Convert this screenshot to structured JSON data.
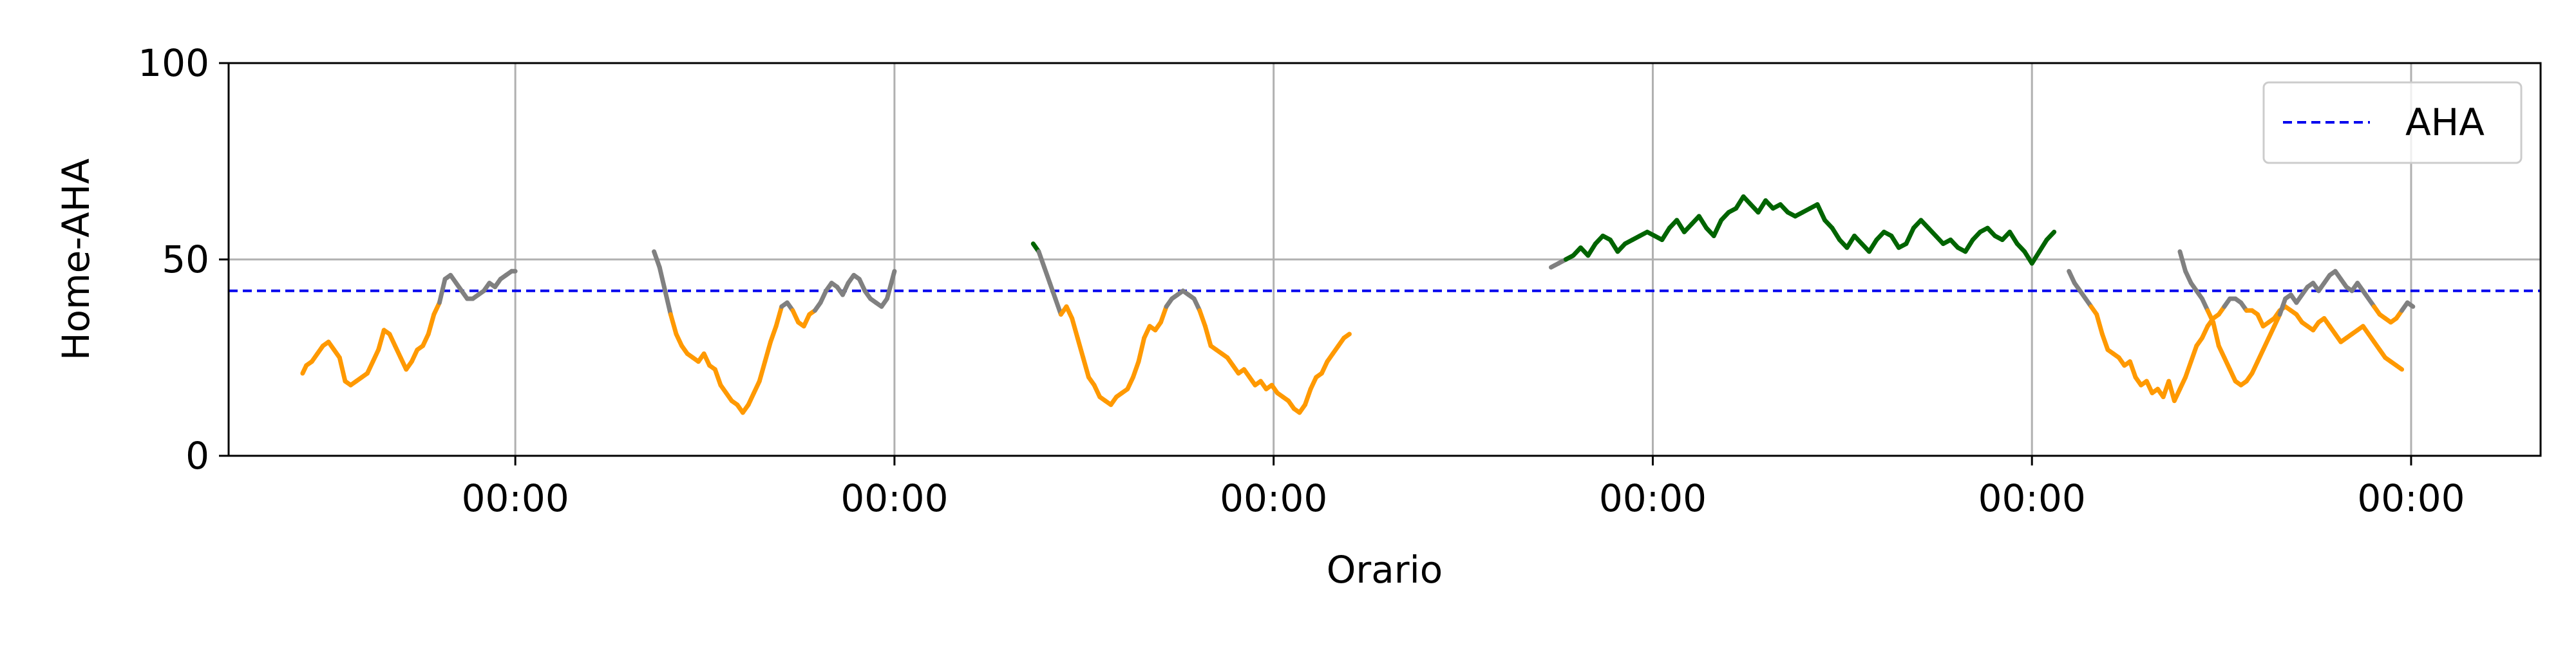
{
  "chart_data": {
    "type": "line",
    "title": "",
    "xlabel": "Orario",
    "ylabel": "Home-AHA",
    "ylim": [
      0,
      100
    ],
    "yticks": [
      0,
      50,
      100
    ],
    "x_unit": "hours",
    "xlim": [
      -15.5,
      109.5
    ],
    "xticks": [
      0,
      20.5,
      41,
      61.5,
      82,
      102.5
    ],
    "xtick_labels": [
      "00:00",
      "00:00",
      "00:00",
      "00:00",
      "00:00",
      "00:00"
    ],
    "grid": true,
    "legend": {
      "position": "top-right",
      "entries": [
        {
          "label": "AHA",
          "color": "#0000ee",
          "style": "dashed"
        }
      ]
    },
    "reference_line": {
      "name": "AHA",
      "value": 42,
      "color": "#0000ee"
    },
    "colors": {
      "below": "#ff9900",
      "near": "#808080",
      "above": "#006400"
    },
    "segments": [
      {
        "x": [
          -11.5,
          -11.3,
          -11,
          -10.7,
          -10.4,
          -10.1,
          -9.8,
          -9.5,
          -9.2,
          -8.9,
          -8.6,
          -8.3,
          -8,
          -7.7,
          -7.4,
          -7.1,
          -6.8,
          -6.5,
          -6.2,
          -5.9,
          -5.6,
          -5.3,
          -5,
          -4.7,
          -4.4,
          -4.1,
          -3.8,
          -3.5,
          -3.2,
          -2.9,
          -2.6,
          -2.3,
          -2,
          -1.7,
          -1.4,
          -1.1,
          -0.8,
          -0.5,
          -0.2,
          0
        ],
        "y": [
          21,
          23,
          24,
          26,
          28,
          29,
          27,
          25,
          19,
          18,
          19,
          20,
          21,
          24,
          27,
          32,
          31,
          28,
          25,
          22,
          24,
          27,
          28,
          31,
          36,
          39,
          45,
          46,
          44,
          42,
          40,
          40,
          41,
          42,
          44,
          43,
          45,
          46,
          47,
          47
        ]
      },
      {
        "x": [
          7.5,
          7.8,
          8.1,
          8.4,
          8.7,
          9,
          9.3,
          9.6,
          9.9,
          10.2,
          10.5,
          10.8,
          11.1,
          11.4,
          11.7,
          12,
          12.3,
          12.6,
          12.9,
          13.2,
          13.5,
          13.8,
          14.1,
          14.4,
          14.7,
          15,
          15.3,
          15.6,
          15.9,
          16.2,
          16.5,
          16.8,
          17.1,
          17.4,
          17.7,
          18,
          18.3,
          18.6,
          18.9,
          19.2,
          19.5,
          19.8,
          20.1,
          20.5
        ],
        "y": [
          52,
          48,
          42,
          36,
          31,
          28,
          26,
          25,
          24,
          26,
          23,
          22,
          18,
          16,
          14,
          13,
          11,
          13,
          16,
          19,
          24,
          29,
          33,
          38,
          39,
          37,
          34,
          33,
          36,
          37,
          39,
          42,
          44,
          43,
          41,
          44,
          46,
          45,
          42,
          40,
          39,
          38,
          40,
          47
        ]
      },
      {
        "x": [
          28,
          28.3,
          28.6,
          28.9,
          29.2,
          29.5,
          29.8,
          30.1,
          30.4,
          30.7,
          31,
          31.3,
          31.6,
          31.9,
          32.2,
          32.5,
          32.8,
          33.1,
          33.4,
          33.7,
          34,
          34.3,
          34.6,
          34.9,
          35.2,
          35.5,
          35.8,
          36.1,
          36.4,
          36.7,
          37,
          37.3,
          37.6,
          37.9,
          38.2,
          38.5,
          38.8,
          39.1,
          39.4,
          39.7,
          40,
          40.3,
          40.6,
          40.9,
          41.2,
          41.5,
          41.8,
          42.1,
          42.4,
          42.7,
          43,
          43.3,
          43.6,
          43.9,
          44.2,
          44.5,
          44.8,
          45.1
        ],
        "y": [
          54,
          52,
          48,
          44,
          40,
          36,
          38,
          35,
          30,
          25,
          20,
          18,
          15,
          14,
          13,
          15,
          16,
          17,
          20,
          24,
          30,
          33,
          32,
          34,
          38,
          40,
          41,
          42,
          41,
          40,
          37,
          33,
          28,
          27,
          26,
          25,
          23,
          21,
          22,
          20,
          18,
          19,
          17,
          18,
          16,
          15,
          14,
          12,
          11,
          13,
          17,
          20,
          21,
          24,
          26,
          28,
          30,
          31
        ]
      },
      {
        "x": [
          56,
          56.4,
          56.8,
          57.2,
          57.6,
          58,
          58.4,
          58.8,
          59.2,
          59.6,
          60,
          60.4,
          60.8,
          61.2,
          61.6,
          62,
          62.4,
          62.8,
          63.2,
          63.6,
          64,
          64.4,
          64.8,
          65.2,
          65.6,
          66,
          66.4,
          66.8,
          67.2,
          67.6,
          68,
          68.4,
          68.8,
          69.2,
          69.6,
          70,
          70.4,
          70.8,
          71.2,
          71.6,
          72,
          72.4,
          72.8,
          73.2,
          73.6,
          74,
          74.4,
          74.8,
          75.2,
          75.6,
          76,
          76.4,
          76.8,
          77.2,
          77.6,
          78,
          78.4,
          78.8,
          79.2,
          79.6,
          80,
          80.4,
          80.8,
          81.2,
          81.6,
          82,
          82.4,
          82.8,
          83.2
        ],
        "y": [
          48,
          49,
          50,
          51,
          53,
          51,
          54,
          56,
          55,
          52,
          54,
          55,
          56,
          57,
          56,
          55,
          58,
          60,
          57,
          59,
          61,
          58,
          56,
          60,
          62,
          63,
          66,
          64,
          62,
          65,
          63,
          64,
          62,
          61,
          62,
          63,
          64,
          60,
          58,
          55,
          53,
          56,
          54,
          52,
          55,
          57,
          56,
          53,
          54,
          58,
          60,
          58,
          56,
          54,
          55,
          53,
          52,
          55,
          57,
          58,
          56,
          55,
          57,
          54,
          52,
          49,
          52,
          55,
          57
        ]
      },
      {
        "x": [
          84,
          84.3,
          84.6,
          84.9,
          85.2,
          85.5,
          85.8,
          86.1,
          86.4,
          86.7,
          87,
          87.3,
          87.6,
          87.9,
          88.2,
          88.5,
          88.8,
          89.1,
          89.4,
          89.7,
          90,
          90.3,
          90.6,
          90.9,
          91.2,
          91.5,
          91.8,
          92.1,
          92.4,
          92.7,
          93,
          93.3,
          93.6,
          93.9,
          94.2,
          94.5,
          94.8,
          95.1,
          95.4,
          95.7,
          96,
          96.3,
          96.6,
          96.9,
          97.2,
          97.5,
          97.8,
          98.1,
          98.4,
          98.7,
          99,
          99.3,
          99.6,
          99.9,
          100.2,
          100.5,
          100.8,
          101.1,
          101.4,
          101.7,
          102
        ],
        "y": [
          47,
          44,
          42,
          40,
          38,
          36,
          31,
          27,
          26,
          25,
          23,
          24,
          20,
          18,
          19,
          16,
          17,
          15,
          19,
          14,
          17,
          20,
          24,
          28,
          30,
          33,
          35,
          36,
          38,
          40,
          40,
          39,
          37,
          37,
          36,
          33,
          34,
          35,
          37,
          38,
          37,
          36,
          34,
          33,
          32,
          34,
          35,
          33,
          31,
          29,
          30,
          31,
          32,
          33,
          31,
          29,
          27,
          25,
          24,
          23,
          22
        ]
      },
      {
        "x": [
          90,
          90.3,
          90.6,
          90.9,
          91.2,
          91.5,
          91.8,
          92.1,
          92.4,
          92.7,
          93,
          93.3,
          93.6,
          93.9,
          94.2,
          94.5,
          94.8,
          95.1,
          95.4,
          95.7,
          96,
          96.3,
          96.6,
          96.9,
          97.2,
          97.5,
          97.8,
          98.1,
          98.4,
          98.7,
          99,
          99.3,
          99.6,
          99.9,
          100.2,
          100.5,
          100.8,
          101.1,
          101.4,
          101.7,
          102,
          102.3,
          102.6
        ],
        "y": [
          52,
          47,
          44,
          42,
          40,
          37,
          34,
          28,
          25,
          22,
          19,
          18,
          19,
          21,
          24,
          27,
          30,
          33,
          36,
          40,
          41,
          39,
          41,
          43,
          44,
          42,
          44,
          46,
          47,
          45,
          43,
          42,
          44,
          42,
          40,
          38,
          36,
          35,
          34,
          35,
          37,
          39,
          38
        ]
      }
    ]
  }
}
